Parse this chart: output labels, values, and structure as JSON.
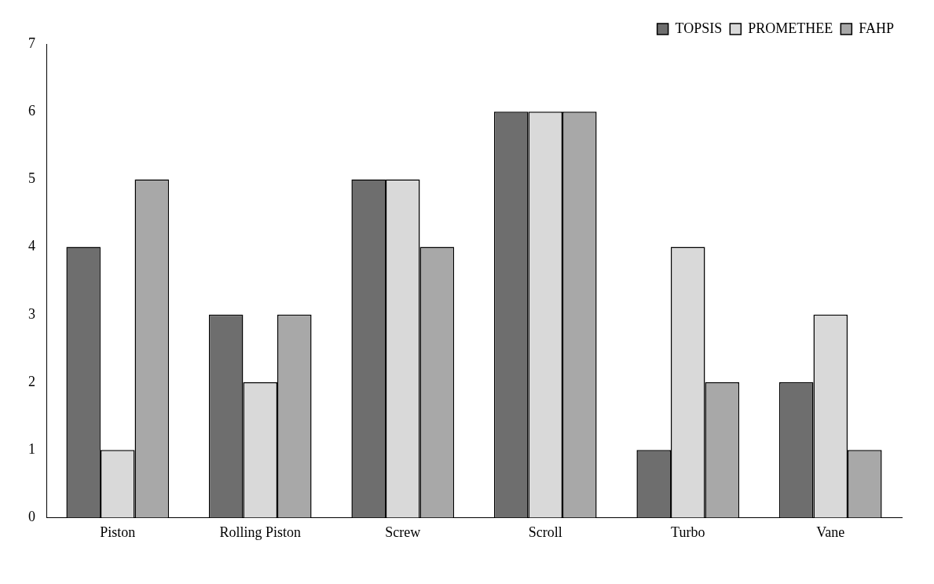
{
  "chart_data": {
    "type": "bar",
    "categories": [
      "Piston",
      "Rolling Piston",
      "Screw",
      "Scroll",
      "Turbo",
      "Vane"
    ],
    "series": [
      {
        "name": "TOPSIS",
        "color": "#6e6e6e",
        "values": [
          4,
          3,
          5,
          6,
          1,
          2
        ]
      },
      {
        "name": "PROMETHEE",
        "color": "#d9d9d9",
        "values": [
          1,
          2,
          5,
          6,
          4,
          3
        ]
      },
      {
        "name": "FAHP",
        "color": "#a8a8a8",
        "values": [
          5,
          3,
          4,
          6,
          2,
          1
        ]
      }
    ],
    "ylim": [
      0,
      7
    ],
    "yticks": [
      0,
      1,
      2,
      3,
      4,
      5,
      6,
      7
    ],
    "grid": false,
    "legend": "top right"
  }
}
